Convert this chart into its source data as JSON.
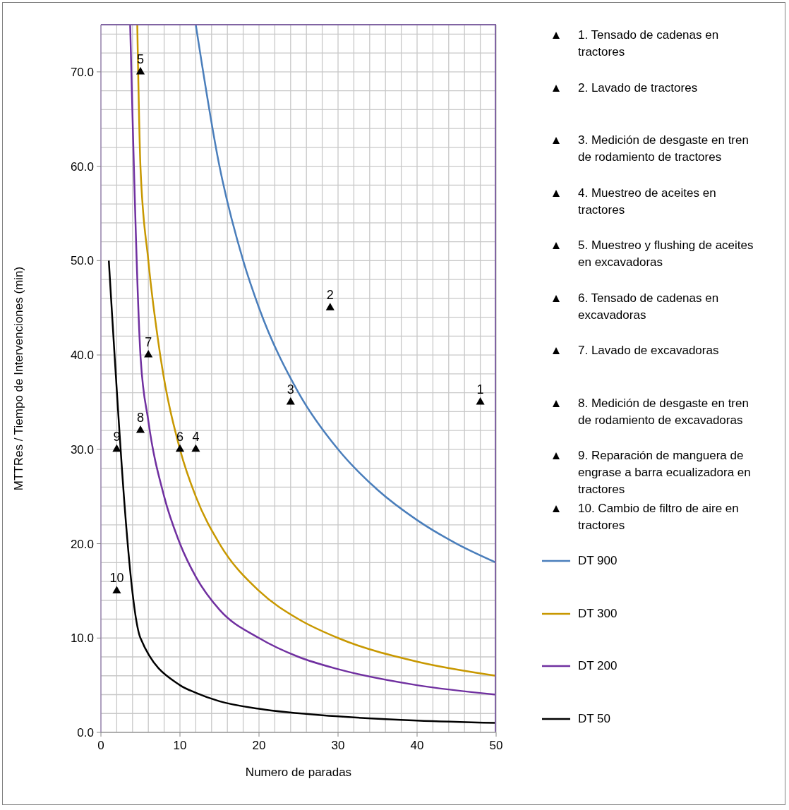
{
  "chart_data": {
    "type": "scatter",
    "xlabel": "Numero de paradas",
    "ylabel": "MTTRes / Tiempo de Intervenciones (min)",
    "xlim": [
      0,
      50
    ],
    "ylim": [
      0,
      75
    ],
    "xticks": [
      0,
      {
        "value": 2,
        "label": null
      },
      {
        "value": 4,
        "label": null
      },
      {
        "value": 6,
        "label": null
      },
      {
        "value": 8,
        "label": null
      },
      10,
      {
        "value": 12,
        "label": null
      },
      {
        "value": 14,
        "label": null
      },
      {
        "value": 16,
        "label": null
      },
      {
        "value": 18,
        "label": null
      },
      20,
      {
        "value": 22,
        "label": null
      },
      {
        "value": 24,
        "label": null
      },
      {
        "value": 26,
        "label": null
      },
      {
        "value": 28,
        "label": null
      },
      30,
      {
        "value": 32,
        "label": null
      },
      {
        "value": 34,
        "label": null
      },
      {
        "value": 36,
        "label": null
      },
      {
        "value": 38,
        "label": null
      },
      40,
      {
        "value": 42,
        "label": null
      },
      {
        "value": 44,
        "label": null
      },
      {
        "value": 46,
        "label": null
      },
      {
        "value": 48,
        "label": null
      },
      50
    ],
    "yticks": [
      {
        "value": 0,
        "label": "0.0"
      },
      {
        "value": 2,
        "label": null
      },
      {
        "value": 4,
        "label": null
      },
      {
        "value": 6,
        "label": null
      },
      {
        "value": 8,
        "label": null
      },
      {
        "value": 10,
        "label": "10.0"
      },
      {
        "value": 12,
        "label": null
      },
      {
        "value": 14,
        "label": null
      },
      {
        "value": 16,
        "label": null
      },
      {
        "value": 18,
        "label": null
      },
      {
        "value": 20,
        "label": "20.0"
      },
      {
        "value": 22,
        "label": null
      },
      {
        "value": 24,
        "label": null
      },
      {
        "value": 26,
        "label": null
      },
      {
        "value": 28,
        "label": null
      },
      {
        "value": 30,
        "label": "30.0"
      },
      {
        "value": 32,
        "label": null
      },
      {
        "value": 34,
        "label": null
      },
      {
        "value": 36,
        "label": null
      },
      {
        "value": 38,
        "label": null
      },
      {
        "value": 40,
        "label": "40.0"
      },
      {
        "value": 42,
        "label": null
      },
      {
        "value": 44,
        "label": null
      },
      {
        "value": 46,
        "label": null
      },
      {
        "value": 48,
        "label": null
      },
      {
        "value": 50,
        "label": "50.0"
      },
      {
        "value": 52,
        "label": null
      },
      {
        "value": 54,
        "label": null
      },
      {
        "value": 56,
        "label": null
      },
      {
        "value": 58,
        "label": null
      },
      {
        "value": 60,
        "label": "60.0"
      },
      {
        "value": 62,
        "label": null
      },
      {
        "value": 64,
        "label": null
      },
      {
        "value": 66,
        "label": null
      },
      {
        "value": 68,
        "label": null
      },
      {
        "value": 70,
        "label": "70.0"
      },
      {
        "value": 72,
        "label": null
      },
      {
        "value": 74,
        "label": null
      }
    ],
    "grid": true,
    "legend": "right",
    "marker": "triangle",
    "series": [
      {
        "name": "1. Tensado de cadenas en tractores",
        "color": "#000000",
        "x": [
          48
        ],
        "values": [
          35
        ]
      },
      {
        "name": "2. Lavado de tractores",
        "color": "#000000",
        "x": [
          29
        ],
        "values": [
          45
        ]
      },
      {
        "name": "3. Medición de desgaste en tren de rodamiento de tractores",
        "color": "#000000",
        "x": [
          24
        ],
        "values": [
          35
        ]
      },
      {
        "name": "4. Muestreo de aceites en tractores",
        "color": "#000000",
        "x": [
          12
        ],
        "values": [
          30
        ]
      },
      {
        "name": "5. Muestreo y flushing de aceites en excavadoras",
        "color": "#000000",
        "x": [
          5
        ],
        "values": [
          70
        ]
      },
      {
        "name": "6. Tensado de cadenas en excavadoras",
        "color": "#000000",
        "x": [
          10
        ],
        "values": [
          30
        ]
      },
      {
        "name": "7. Lavado de excavadoras",
        "color": "#000000",
        "x": [
          6
        ],
        "values": [
          40
        ]
      },
      {
        "name": "8. Medición de desgaste en tren de rodamiento de excavadoras",
        "color": "#000000",
        "x": [
          5
        ],
        "values": [
          32
        ]
      },
      {
        "name": "9. Reparación de manguera de engrase a barra ecualizadora en tractores",
        "color": "#000000",
        "x": [
          2
        ],
        "values": [
          30
        ]
      },
      {
        "name": "10. Cambio de filtro de aire en tractores",
        "color": "#000000",
        "x": [
          2
        ],
        "values": [
          15
        ]
      },
      {
        "name": "DT 900",
        "type": "line",
        "marker": "none",
        "color": "#4a7ebb",
        "x": [
          12,
          15,
          18,
          20,
          25,
          30,
          35,
          40,
          45,
          50
        ],
        "values": [
          75,
          60,
          50,
          45,
          36,
          30,
          25.7,
          22.5,
          20,
          18
        ]
      },
      {
        "name": "DT 300",
        "type": "line",
        "marker": "none",
        "color": "#c89800",
        "x": [
          4.6,
          5,
          6,
          7.5,
          10,
          12,
          15,
          20,
          25,
          30,
          40,
          50
        ],
        "values": [
          75,
          60,
          50,
          40,
          30,
          25,
          20,
          15,
          12,
          10,
          7.5,
          6
        ]
      },
      {
        "name": "DT 200",
        "type": "line",
        "marker": "none",
        "color": "#7030a0",
        "x": [
          3.7,
          5,
          6,
          8,
          10,
          12,
          15,
          20,
          25,
          30,
          40,
          50
        ],
        "values": [
          75,
          40,
          33,
          25,
          20,
          16.5,
          13,
          10,
          8,
          6.7,
          5,
          4
        ]
      },
      {
        "name": "DT 50",
        "type": "line",
        "marker": "none",
        "color": "#000000",
        "x": [
          1,
          5,
          10,
          12,
          15,
          20,
          30,
          40,
          50
        ],
        "values": [
          50,
          10,
          5,
          4.2,
          3.3,
          2.5,
          1.7,
          1.25,
          1
        ]
      }
    ],
    "annotations": [
      {
        "text": "1",
        "x": 48,
        "y": 35
      },
      {
        "text": "2",
        "x": 29,
        "y": 45
      },
      {
        "text": "3",
        "x": 24,
        "y": 35
      },
      {
        "text": "4",
        "x": 12,
        "y": 30
      },
      {
        "text": "5",
        "x": 5,
        "y": 70
      },
      {
        "text": "6",
        "x": 10,
        "y": 30
      },
      {
        "text": "7",
        "x": 6,
        "y": 40
      },
      {
        "text": "8",
        "x": 5,
        "y": 32
      },
      {
        "text": "9",
        "x": 2,
        "y": 30
      },
      {
        "text": "10",
        "x": 2,
        "y": 15
      }
    ]
  }
}
